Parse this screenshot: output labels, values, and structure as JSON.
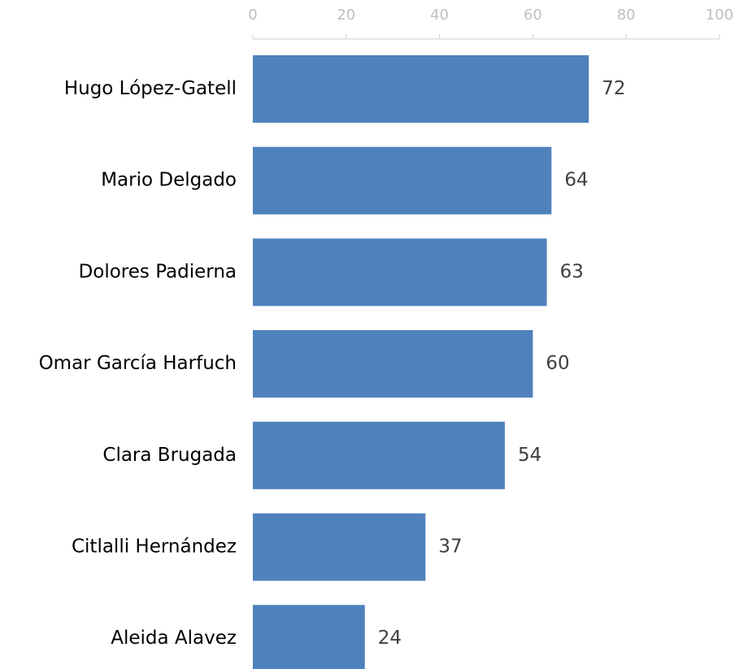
{
  "chart_data": {
    "type": "bar",
    "orientation": "horizontal",
    "categories": [
      "Hugo López-Gatell",
      "Mario Delgado",
      "Dolores Padierna",
      "Omar García Harfuch",
      "Clara Brugada",
      "Citlalli Hernández",
      "Aleida Alavez"
    ],
    "values": [
      72,
      64,
      63,
      60,
      54,
      37,
      24
    ],
    "color": "#4f81bd",
    "xlim": [
      0,
      100
    ],
    "xticks": [
      0,
      20,
      40,
      60,
      80,
      100
    ],
    "axis_position": "top",
    "grid": false
  }
}
